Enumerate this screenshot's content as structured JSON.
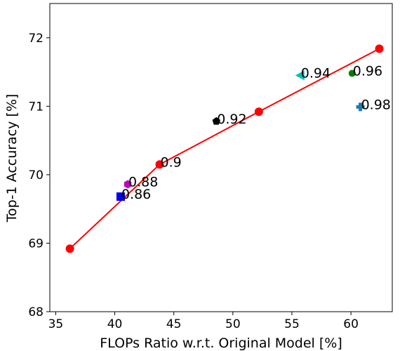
{
  "chart_data": {
    "type": "scatter",
    "title": "",
    "xlabel": "FLOPs Ratio w.r.t. Original Model [%]",
    "ylabel": "Top-1 Accuracy [%]",
    "xlim": [
      34.5,
      63.5
    ],
    "ylim": [
      68,
      72.5
    ],
    "xticks": [
      35,
      40,
      45,
      50,
      55,
      60
    ],
    "yticks": [
      68,
      69,
      70,
      71,
      72
    ],
    "grid": false,
    "line_series": {
      "color": "#ff0000",
      "marker": "circle",
      "points": [
        {
          "x": 36.2,
          "y": 68.92
        },
        {
          "x": 43.8,
          "y": 70.15
        },
        {
          "x": 52.2,
          "y": 70.92
        },
        {
          "x": 62.4,
          "y": 71.84
        }
      ]
    },
    "points": [
      {
        "x": 40.5,
        "y": 69.68,
        "label": "0.86",
        "marker": "square",
        "color": "#0000ee"
      },
      {
        "x": 41.1,
        "y": 69.86,
        "label": "0.88",
        "marker": "hexagon",
        "color": "#bf00bf"
      },
      {
        "x": 43.8,
        "y": 70.15,
        "label": "0.9",
        "marker": "none",
        "color": "#ff0000"
      },
      {
        "x": 48.6,
        "y": 70.78,
        "label": "0.92",
        "marker": "pentagon",
        "color": "#000000"
      },
      {
        "x": 55.7,
        "y": 71.45,
        "label": "0.94",
        "marker": "triangle-left",
        "color": "#00bfbf"
      },
      {
        "x": 60.1,
        "y": 71.48,
        "label": "0.96",
        "marker": "circle-small",
        "color": "#008000"
      },
      {
        "x": 60.8,
        "y": 70.99,
        "label": "0.98",
        "marker": "plus",
        "color": "#1f77b4"
      }
    ]
  }
}
